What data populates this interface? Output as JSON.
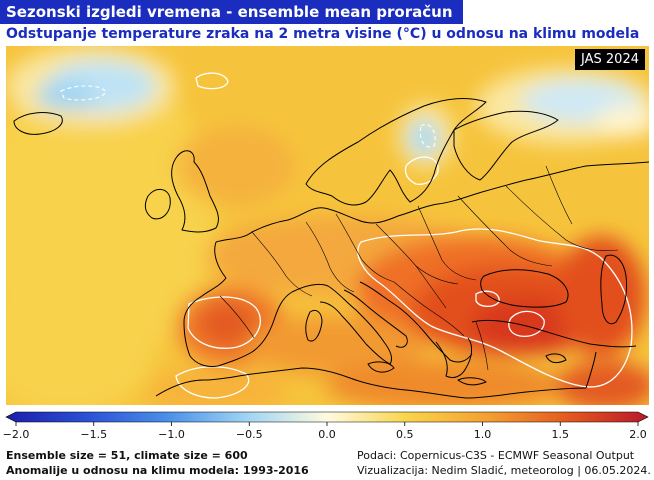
{
  "header": {
    "title": "Sezonski izgledi vremena - ensemble mean proračun",
    "subtitle": "Odstupanje temperature zraka na 2 metra visine (°C) u odnosu na klimu modela"
  },
  "map": {
    "season_badge": "JAS 2024",
    "region": "Europe",
    "palette": {
      "warm_strong": "#d9361f",
      "warm_mid": "#ef6a24",
      "warm_light": "#f5a03a",
      "yellow": "#f8cf45",
      "neutral": "#fdf6c8",
      "cool_light": "#bfe3f5",
      "cool": "#7cc4ef",
      "ocean_land_line": "#000000",
      "contour": "#ffffff"
    }
  },
  "colorbar": {
    "min": -2.0,
    "max": 2.0,
    "tick_labels": [
      "−2.0",
      "−1.5",
      "−1.0",
      "−0.5",
      "0.0",
      "0.5",
      "1.0",
      "1.5",
      "2.0"
    ],
    "tick_values": [
      -2.0,
      -1.5,
      -1.0,
      -0.5,
      0.0,
      0.5,
      1.0,
      1.5,
      2.0
    ],
    "stops": [
      {
        "value": -2.0,
        "color": "#1a1fa8"
      },
      {
        "value": -1.5,
        "color": "#2b50d6"
      },
      {
        "value": -1.0,
        "color": "#4a8fe8"
      },
      {
        "value": -0.5,
        "color": "#9fd4f3"
      },
      {
        "value": 0.0,
        "color": "#fffbe0"
      },
      {
        "value": 0.5,
        "color": "#f9d44a"
      },
      {
        "value": 1.0,
        "color": "#f4a032"
      },
      {
        "value": 1.5,
        "color": "#e35a1f"
      },
      {
        "value": 2.0,
        "color": "#b81a2a"
      }
    ]
  },
  "footer": {
    "ensemble_line": "Ensemble size = 51, climate size = 600",
    "anomaly_line": "Anomalije u odnosu na klimu modela: 1993-2016",
    "source_line": "Podaci: Copernicus-C3S - ECMWF Seasonal Output",
    "credit_line": "Vizualizacija: Nedim Sladić, meteorolog | 06.05.2024."
  }
}
